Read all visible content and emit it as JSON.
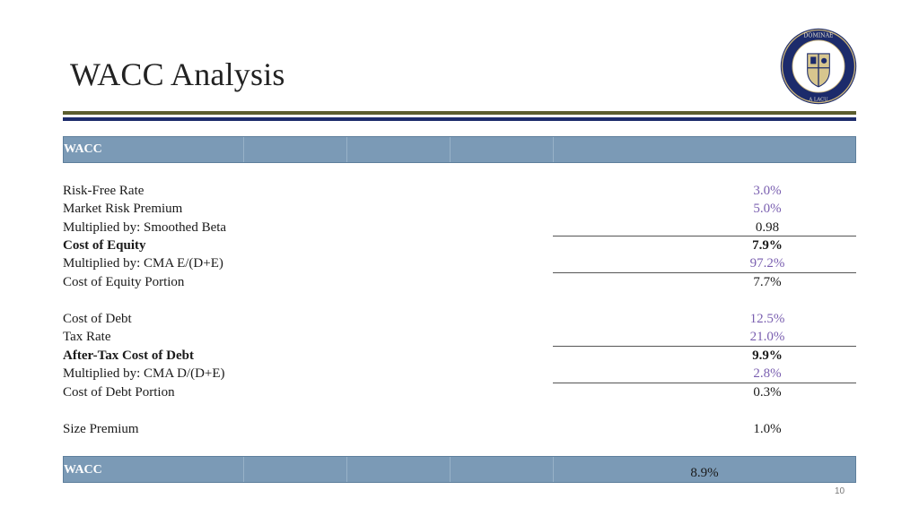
{
  "page": {
    "title": "WACC Analysis",
    "page_number": "10"
  },
  "header_bar": {
    "label": "WACC"
  },
  "rows": [
    {
      "label": "Risk-Free Rate",
      "value": "3.0%",
      "color": "#7a5fb0",
      "bold": false
    },
    {
      "label": "Market Risk Premium",
      "value": "5.0%",
      "color": "#7a5fb0",
      "bold": false
    },
    {
      "label": "Multiplied by: Smoothed Beta",
      "value": "0.98",
      "color": "#1a1a1a",
      "bold": false
    },
    {
      "label": "Cost of Equity",
      "value": "7.9%",
      "color": "#1a1a1a",
      "bold": true
    },
    {
      "label": "Multiplied by: CMA E/(D+E)",
      "value": "97.2%",
      "color": "#7a5fb0",
      "bold": false
    },
    {
      "label": "Cost of Equity Portion",
      "value": "7.7%",
      "color": "#1a1a1a",
      "bold": false
    },
    {
      "label": "Cost of Debt",
      "value": "12.5%",
      "color": "#7a5fb0",
      "bold": false
    },
    {
      "label": "Tax Rate",
      "value": "21.0%",
      "color": "#7a5fb0",
      "bold": false
    },
    {
      "label": "After-Tax Cost of Debt",
      "value": "9.9%",
      "color": "#1a1a1a",
      "bold": true
    },
    {
      "label": "Multiplied by: CMA D/(D+E)",
      "value": "2.8%",
      "color": "#7a5fb0",
      "bold": false
    },
    {
      "label": "Cost of Debt Portion",
      "value": "0.3%",
      "color": "#1a1a1a",
      "bold": false
    },
    {
      "label": "Size Premium",
      "value": "1.0%",
      "color": "#1a1a1a",
      "bold": false
    }
  ],
  "footer_bar": {
    "label": "WACC",
    "value": "8.9%"
  },
  "colors": {
    "header_bar": "#7b9ab6",
    "rule_olive": "#5b5d2e",
    "rule_navy": "#1c2b6b",
    "input_value": "#7a5fb0"
  },
  "logo": {
    "name": "university-seal-icon",
    "text": "UNIVERSITATIS DOMINAE NOSTRAE A LACU + SIGILLUM"
  }
}
